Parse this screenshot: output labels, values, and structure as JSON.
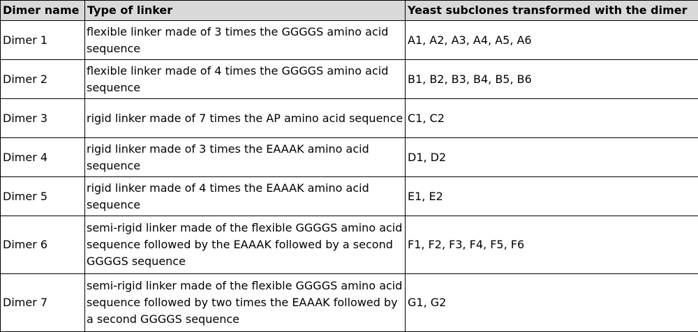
{
  "table": {
    "headers": [
      "Dimer name",
      "Type of linker",
      "Yeast subclones transformed with the dimer"
    ],
    "rows": [
      {
        "name": "Dimer 1",
        "linker": "flexible linker made of 3 times the GGGGS amino acid sequence",
        "subclones": "A1, A2, A3, A4, A5, A6"
      },
      {
        "name": "Dimer 2",
        "linker": "flexible linker made of 4 times the GGGGS amino acid sequence",
        "subclones": "B1, B2, B3, B4, B5, B6"
      },
      {
        "name": "Dimer 3",
        "linker": "rigid linker made of 7 times the AP amino acid sequence",
        "subclones": "C1, C2"
      },
      {
        "name": "Dimer 4",
        "linker": "rigid linker made of 3 times the EAAAK amino acid sequence",
        "subclones": "D1, D2"
      },
      {
        "name": "Dimer 5",
        "linker": "rigid linker made of 4 times the EAAAK amino acid sequence",
        "subclones": "E1, E2"
      },
      {
        "name": "Dimer 6",
        "linker": "semi-rigid linker made of the flexible GGGGS amino acid sequence followed by the EAAAK followed by a second GGGGS sequence",
        "subclones": "F1, F2, F3, F4, F5, F6"
      },
      {
        "name": "Dimer 7",
        "linker": "semi-rigid linker made of the flexible GGGGS amino acid sequence followed by two times the EAAAK followed by a second GGGGS sequence",
        "subclones": "G1, G2"
      }
    ]
  }
}
